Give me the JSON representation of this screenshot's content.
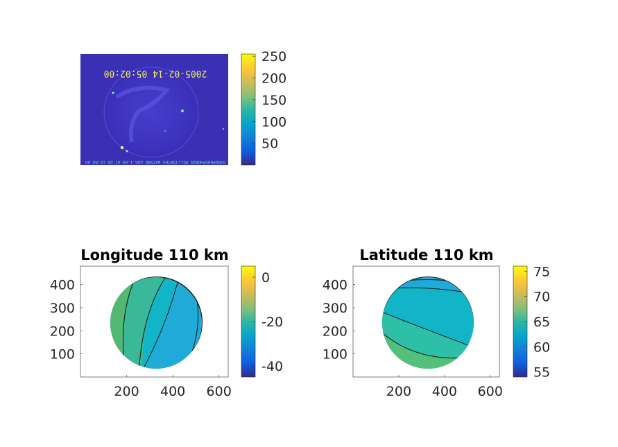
{
  "chart_data": [
    {
      "type": "heatmap",
      "name": "image",
      "overlay_text": "2005-02-14 05:02:00",
      "footer_text": "GYROPHOSPHORUS MILLIONTHS WATSNE AUG-1-00-07-DD CO.RO.0D",
      "colorbar": {
        "ticks": [
          50,
          100,
          150,
          200,
          250
        ],
        "range": [
          0,
          255
        ]
      }
    },
    {
      "type": "heatmap",
      "title": "Longitude 110 km",
      "xlim": [
        0,
        640
      ],
      "ylim": [
        0,
        480
      ],
      "xticks": [
        200,
        400,
        600
      ],
      "yticks": [
        100,
        200,
        300,
        400
      ],
      "colorbar": {
        "ticks": [
          -40,
          -20,
          0
        ],
        "range": [
          -45,
          5
        ]
      },
      "bands": [
        {
          "value": -30,
          "color": "#1faad8"
        },
        {
          "value": -24,
          "color": "#12b5c8"
        },
        {
          "value": -15,
          "color": "#3ab89a"
        },
        {
          "value": -8,
          "color": "#52b872"
        }
      ]
    },
    {
      "type": "heatmap",
      "title": "Latitude 110 km",
      "xlim": [
        0,
        640
      ],
      "ylim": [
        0,
        480
      ],
      "xticks": [
        200,
        400,
        600
      ],
      "yticks": [
        100,
        200,
        300,
        400
      ],
      "colorbar": {
        "ticks": [
          55,
          60,
          65,
          70,
          75
        ],
        "range": [
          54,
          76
        ]
      },
      "bands": [
        {
          "value": 61,
          "color": "#1faad8"
        },
        {
          "value": 63,
          "color": "#12b5c8"
        },
        {
          "value": 65,
          "color": "#2ebfa8"
        },
        {
          "value": 67,
          "color": "#52c07a"
        }
      ]
    }
  ]
}
